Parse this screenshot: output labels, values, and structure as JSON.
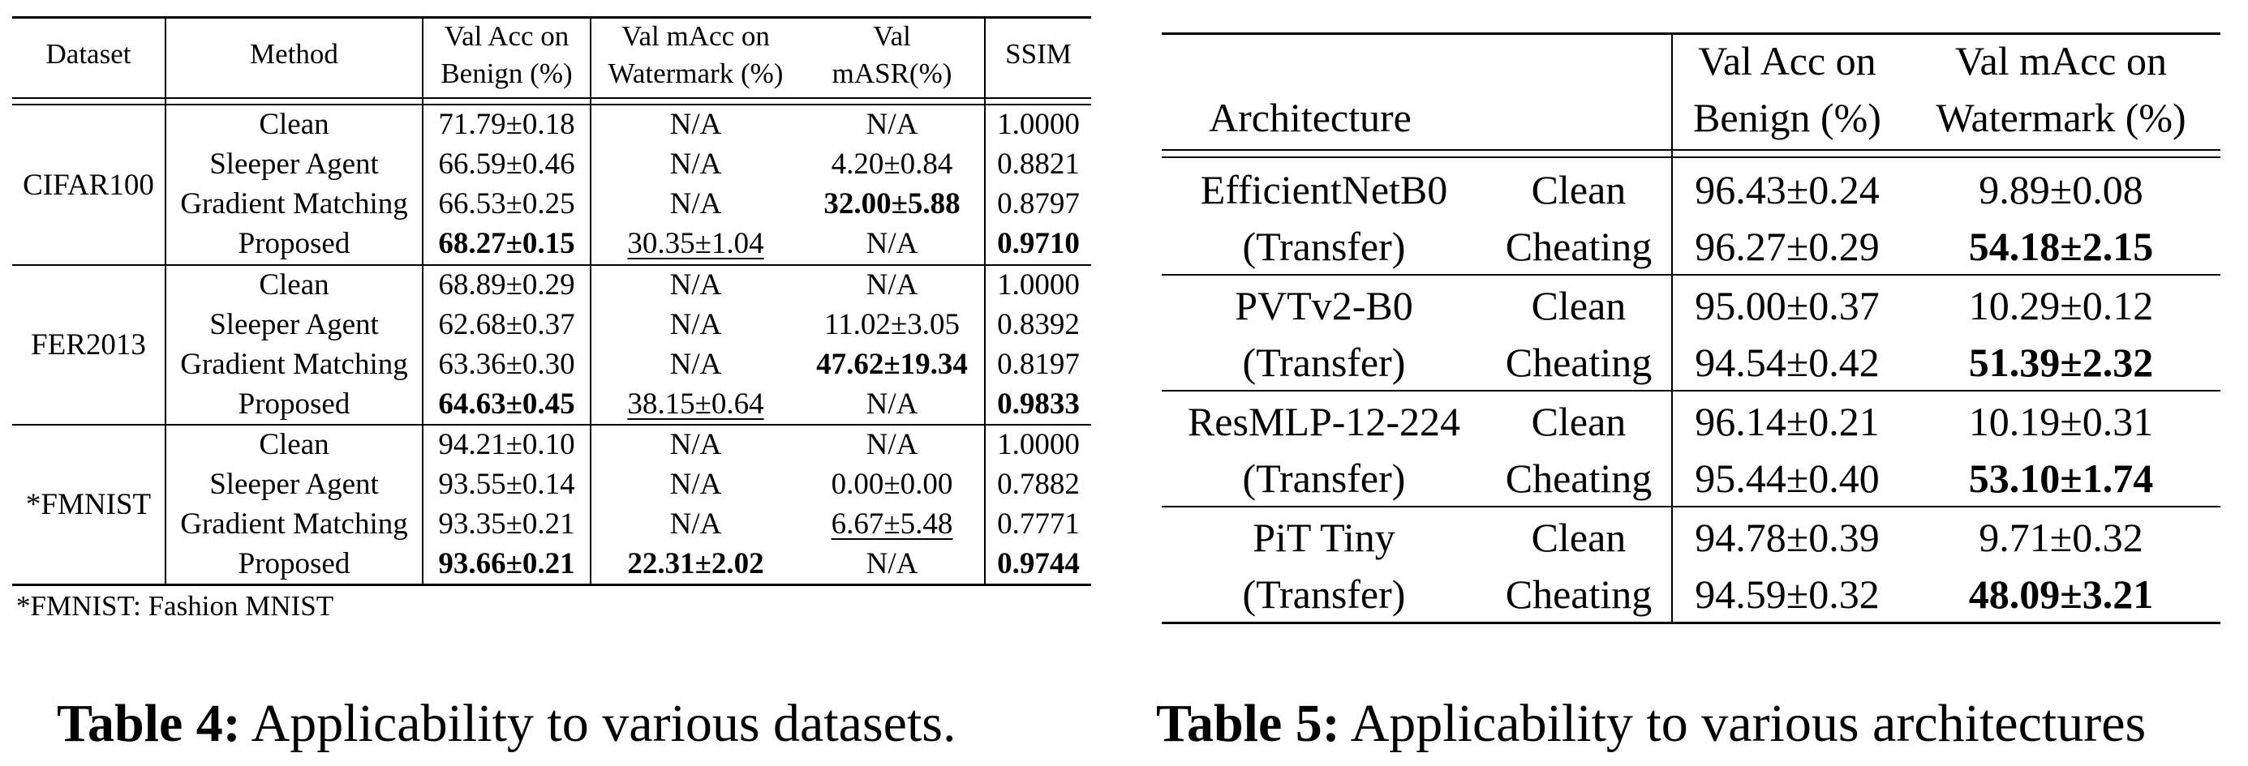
{
  "table4": {
    "headers": {
      "dataset": "Dataset",
      "method": "Method",
      "val_acc_1": "Val Acc on",
      "val_acc_2": "Benign (%)",
      "val_macc_1": "Val mAcc on",
      "val_macc_2": "Watermark (%)",
      "val_masr_1": "Val",
      "val_masr_2": "mASR(%)",
      "ssim": "SSIM"
    },
    "groups": [
      {
        "dataset": "CIFAR100",
        "rows": [
          {
            "method": "Clean",
            "acc": "71.79±0.18",
            "macc": "N/A",
            "masr": "N/A",
            "ssim": "1.0000"
          },
          {
            "method": "Sleeper Agent",
            "acc": "66.59±0.46",
            "macc": "N/A",
            "masr": "4.20±0.84",
            "ssim": "0.8821"
          },
          {
            "method": "Gradient Matching",
            "acc": "66.53±0.25",
            "macc": "N/A",
            "masr": "32.00±5.88",
            "ssim": "0.8797"
          },
          {
            "method": "Proposed",
            "acc": "68.27±0.15",
            "macc": "30.35±1.04",
            "masr": "N/A",
            "ssim": "0.9710"
          }
        ]
      },
      {
        "dataset": "FER2013",
        "rows": [
          {
            "method": "Clean",
            "acc": "68.89±0.29",
            "macc": "N/A",
            "masr": "N/A",
            "ssim": "1.0000"
          },
          {
            "method": "Sleeper Agent",
            "acc": "62.68±0.37",
            "macc": "N/A",
            "masr": "11.02±3.05",
            "ssim": "0.8392"
          },
          {
            "method": "Gradient Matching",
            "acc": "63.36±0.30",
            "macc": "N/A",
            "masr": "47.62±19.34",
            "ssim": "0.8197"
          },
          {
            "method": "Proposed",
            "acc": "64.63±0.45",
            "macc": "38.15±0.64",
            "masr": "N/A",
            "ssim": "0.9833"
          }
        ]
      },
      {
        "dataset": "*FMNIST",
        "rows": [
          {
            "method": "Clean",
            "acc": "94.21±0.10",
            "macc": "N/A",
            "masr": "N/A",
            "ssim": "1.0000"
          },
          {
            "method": "Sleeper Agent",
            "acc": "93.55±0.14",
            "macc": "N/A",
            "masr": "0.00±0.00",
            "ssim": "0.7882"
          },
          {
            "method": "Gradient Matching",
            "acc": "93.35±0.21",
            "macc": "N/A",
            "masr": "6.67±5.48",
            "ssim": "0.7771"
          },
          {
            "method": "Proposed",
            "acc": "93.66±0.21",
            "macc": "22.31±2.02",
            "masr": "N/A",
            "ssim": "0.9744"
          }
        ]
      }
    ],
    "footnote": "*FMNIST: Fashion MNIST",
    "caption_label": "Table 4:",
    "caption_text": "Applicability to various datasets."
  },
  "table5": {
    "headers": {
      "architecture": "Architecture",
      "val_acc_1": "Val Acc on",
      "val_acc_2": "Benign (%)",
      "val_macc_1": "Val mAcc on",
      "val_macc_2": "Watermark (%)"
    },
    "groups": [
      {
        "arch": "EfficientNetB0",
        "sub": "(Transfer)",
        "rows": [
          {
            "method": "Clean",
            "acc": "96.43±0.24",
            "macc": "9.89±0.08"
          },
          {
            "method": "Cheating",
            "acc": "96.27±0.29",
            "macc": "54.18±2.15"
          }
        ]
      },
      {
        "arch": "PVTv2-B0",
        "sub": "(Transfer)",
        "rows": [
          {
            "method": "Clean",
            "acc": "95.00±0.37",
            "macc": "10.29±0.12"
          },
          {
            "method": "Cheating",
            "acc": "94.54±0.42",
            "macc": "51.39±2.32"
          }
        ]
      },
      {
        "arch": "ResMLP-12-224",
        "sub": "(Transfer)",
        "rows": [
          {
            "method": "Clean",
            "acc": "96.14±0.21",
            "macc": "10.19±0.31"
          },
          {
            "method": "Cheating",
            "acc": "95.44±0.40",
            "macc": "53.10±1.74"
          }
        ]
      },
      {
        "arch": "PiT Tiny",
        "sub": "(Transfer)",
        "rows": [
          {
            "method": "Clean",
            "acc": "94.78±0.39",
            "macc": "9.71±0.32"
          },
          {
            "method": "Cheating",
            "acc": "94.59±0.32",
            "macc": "48.09±3.21"
          }
        ]
      }
    ],
    "caption_label": "Table 5:",
    "caption_text": "Applicability to various architectures"
  }
}
